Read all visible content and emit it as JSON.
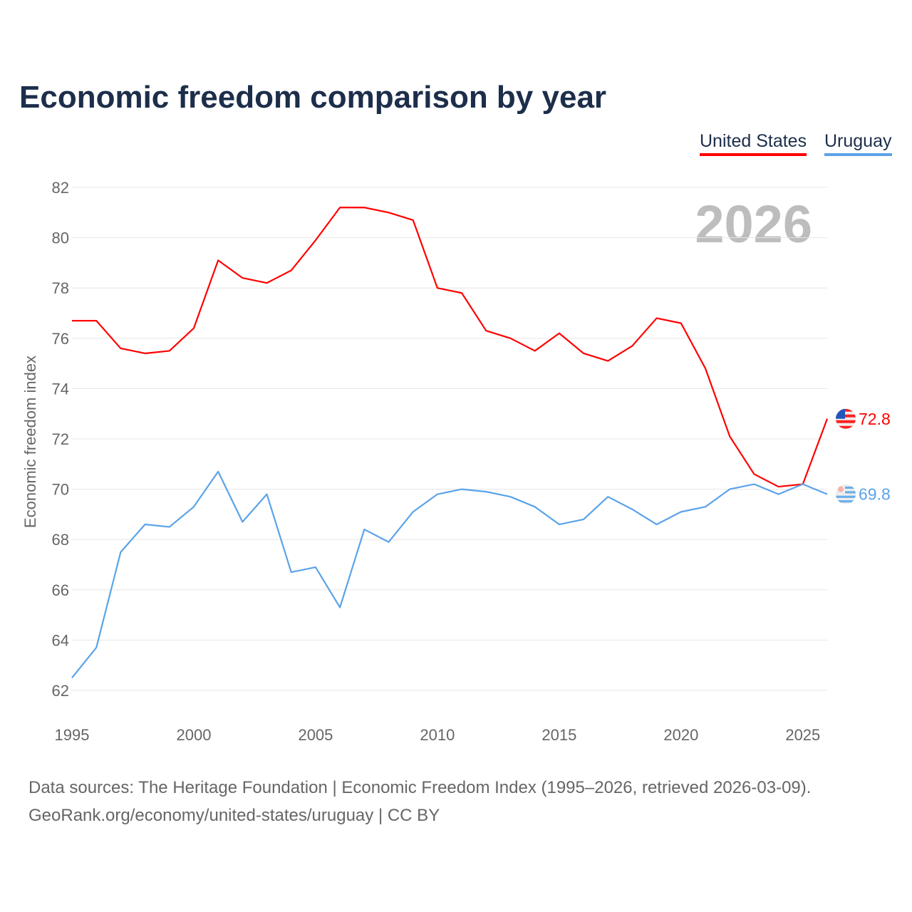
{
  "title": "Economic freedom comparison by year",
  "legend": [
    {
      "label": "United States",
      "color": "#ff0000"
    },
    {
      "label": "Uruguay",
      "color": "#5ba3e8"
    }
  ],
  "footer": {
    "line1": "Data sources: The Heritage Foundation | Economic Freedom Index (1995–2026, retrieved 2026-03-09).",
    "line2": "GeoRank.org/economy/united-states/uruguay | CC BY"
  },
  "chart_data": {
    "type": "line",
    "title": "Economic freedom comparison by year",
    "xlabel": "",
    "ylabel": "Economic freedom index",
    "year_watermark": "2026",
    "x": [
      1995,
      1996,
      1997,
      1998,
      1999,
      2000,
      2001,
      2002,
      2003,
      2004,
      2005,
      2006,
      2007,
      2008,
      2009,
      2010,
      2011,
      2012,
      2013,
      2014,
      2015,
      2016,
      2017,
      2018,
      2019,
      2020,
      2021,
      2022,
      2023,
      2024,
      2025,
      2026
    ],
    "xlim": [
      1995,
      2026
    ],
    "ylim": [
      62,
      82
    ],
    "xticks": [
      1995,
      2000,
      2005,
      2010,
      2015,
      2020,
      2025
    ],
    "yticks": [
      62,
      64,
      66,
      68,
      70,
      72,
      74,
      76,
      78,
      80,
      82
    ],
    "grid": true,
    "legend_position": "top-right",
    "series": [
      {
        "name": "United States",
        "color": "#ff0000",
        "end_label": "72.8",
        "flag": "us-flag",
        "values": [
          76.7,
          76.7,
          75.6,
          75.4,
          75.5,
          76.4,
          79.1,
          78.4,
          78.2,
          78.7,
          79.9,
          81.2,
          81.2,
          81.0,
          80.7,
          78.0,
          77.8,
          76.3,
          76.0,
          75.5,
          76.2,
          75.4,
          75.1,
          75.7,
          76.8,
          76.6,
          74.8,
          72.1,
          70.6,
          70.1,
          70.2,
          72.8
        ]
      },
      {
        "name": "Uruguay",
        "color": "#5ba3e8",
        "end_label": "69.8",
        "flag": "uruguay-flag",
        "values": [
          62.5,
          63.7,
          67.5,
          68.6,
          68.5,
          69.3,
          70.7,
          68.7,
          69.8,
          66.7,
          66.9,
          65.3,
          68.4,
          67.9,
          69.1,
          69.8,
          70.0,
          69.9,
          69.7,
          69.3,
          68.6,
          68.8,
          69.7,
          69.2,
          68.6,
          69.1,
          69.3,
          70.0,
          70.2,
          69.8,
          70.2,
          69.8
        ]
      }
    ]
  }
}
